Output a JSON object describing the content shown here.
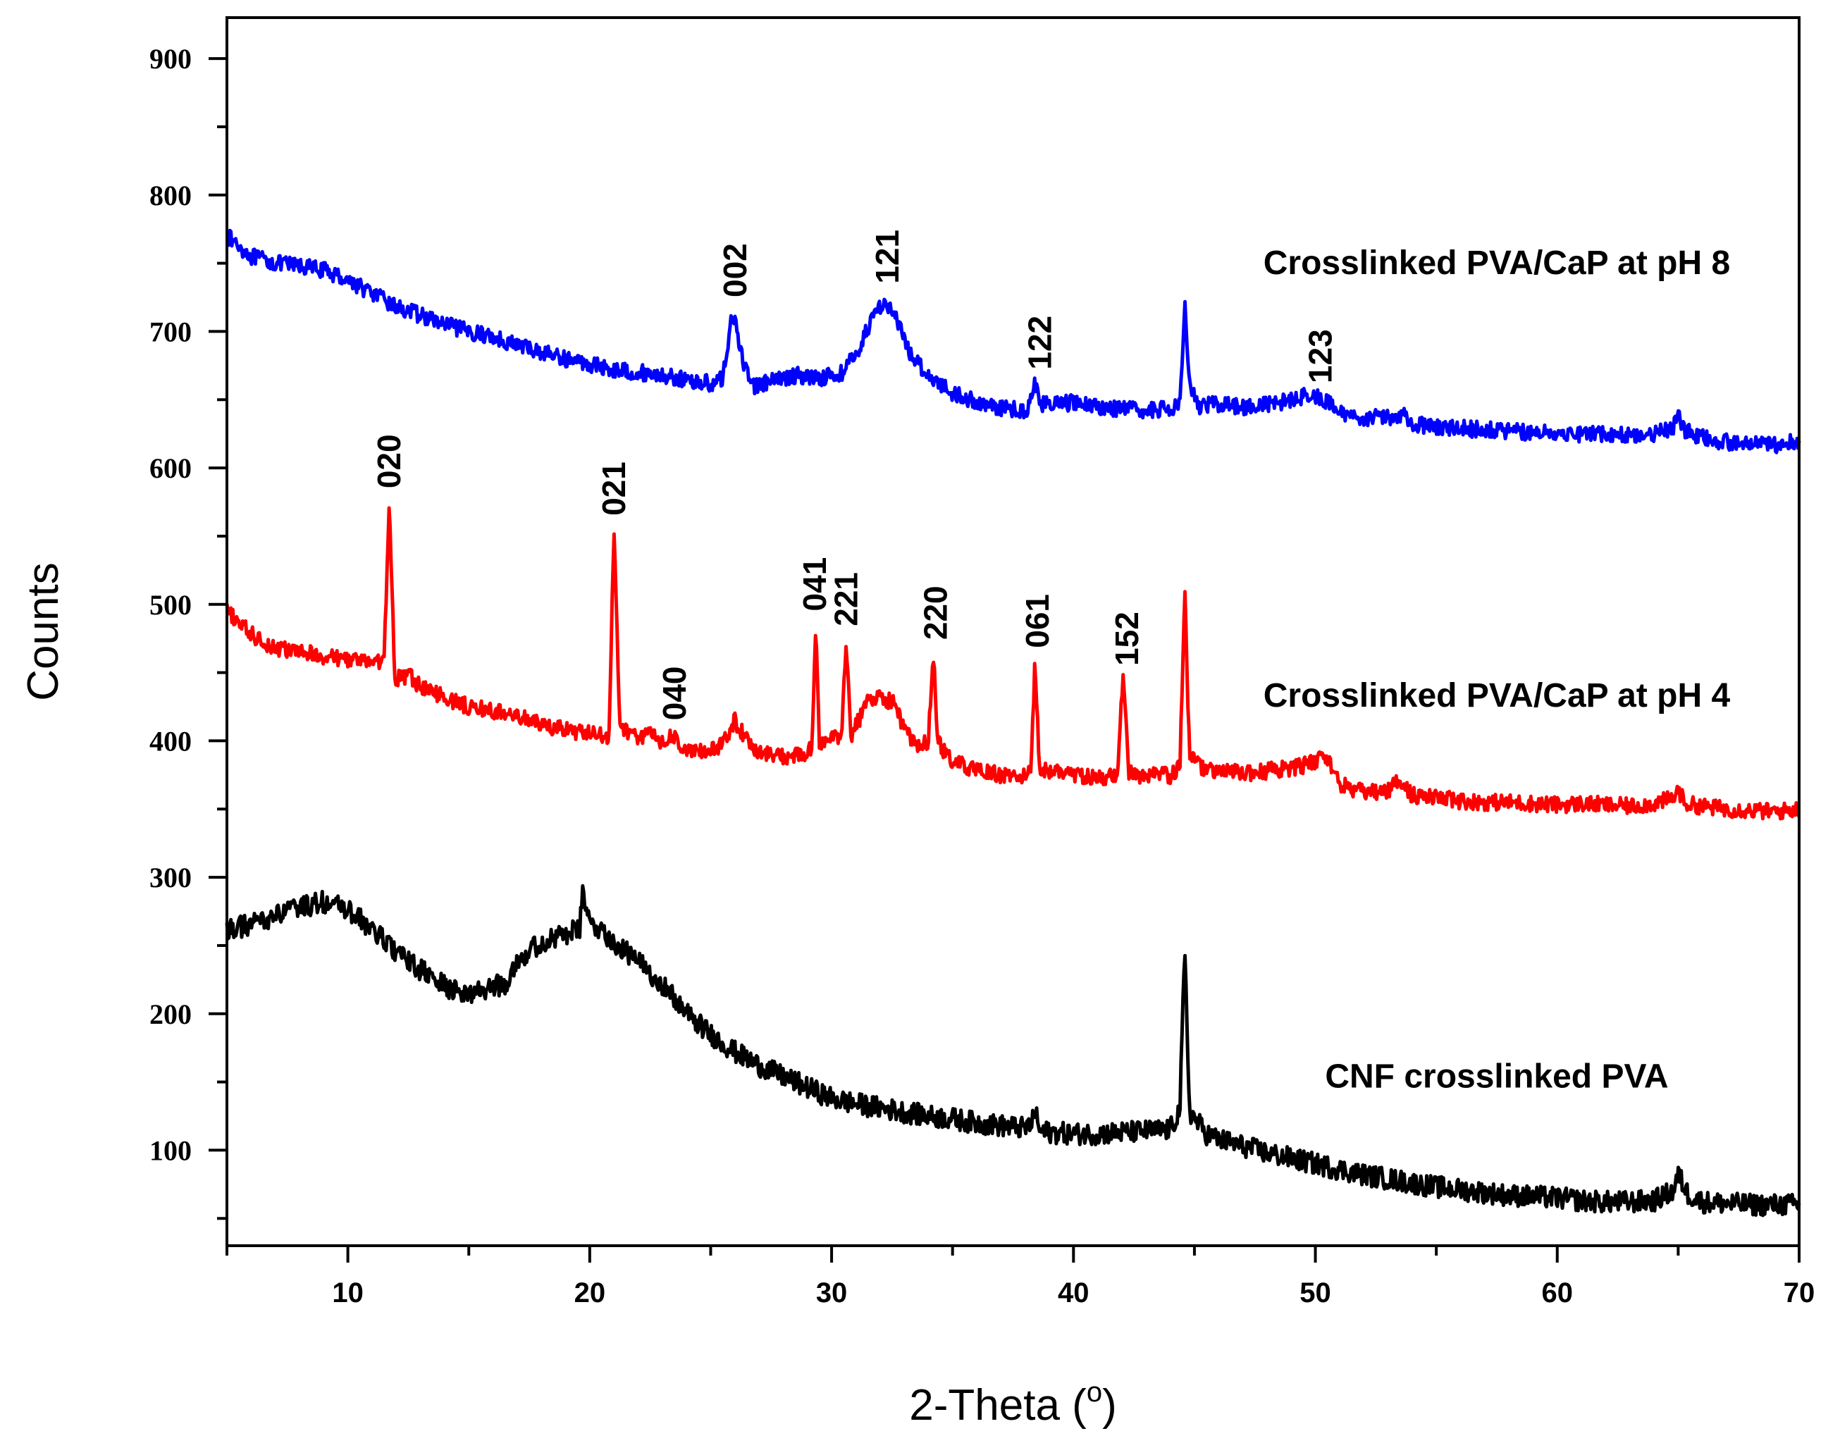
{
  "chart_data": {
    "type": "line",
    "title": "",
    "xlabel": "2-Theta (",
    "xlabel_sup": "o",
    "xlabel_close": ")",
    "ylabel": "Counts",
    "xlim": [
      5,
      70
    ],
    "ylim": [
      30,
      930
    ],
    "xticks": [
      10,
      20,
      30,
      40,
      50,
      60,
      70
    ],
    "yticks": [
      100,
      200,
      300,
      400,
      500,
      600,
      700,
      800,
      900
    ],
    "series": [
      {
        "name": "Crosslinked PVA/CaP at pH 8",
        "color": "#0000ff",
        "points": [
          [
            5,
            770
          ],
          [
            6,
            755
          ],
          [
            7,
            750
          ],
          [
            8,
            748
          ],
          [
            9,
            745
          ],
          [
            10,
            738
          ],
          [
            11,
            728
          ],
          [
            12,
            718
          ],
          [
            13,
            712
          ],
          [
            14,
            705
          ],
          [
            15,
            700
          ],
          [
            16,
            696
          ],
          [
            17,
            690
          ],
          [
            18,
            685
          ],
          [
            19,
            680
          ],
          [
            20,
            676
          ],
          [
            21,
            672
          ],
          [
            22,
            670
          ],
          [
            23,
            668
          ],
          [
            24,
            664
          ],
          [
            25,
            662
          ],
          [
            25.5,
            665
          ],
          [
            25.9,
            715
          ],
          [
            26.3,
            680
          ],
          [
            26.8,
            660
          ],
          [
            27.5,
            663
          ],
          [
            28.5,
            668
          ],
          [
            29.5,
            666
          ],
          [
            30.5,
            670
          ],
          [
            31.2,
            690
          ],
          [
            31.8,
            715
          ],
          [
            32.2,
            722
          ],
          [
            32.6,
            712
          ],
          [
            33.2,
            685
          ],
          [
            34,
            668
          ],
          [
            35,
            655
          ],
          [
            36,
            648
          ],
          [
            37,
            644
          ],
          [
            38,
            642
          ],
          [
            38.2,
            646
          ],
          [
            38.4,
            664
          ],
          [
            38.6,
            648
          ],
          [
            39,
            646
          ],
          [
            40,
            648
          ],
          [
            41,
            645
          ],
          [
            42,
            643
          ],
          [
            43,
            642
          ],
          [
            44,
            643
          ],
          [
            44.4,
            650
          ],
          [
            44.6,
            720
          ],
          [
            44.8,
            660
          ],
          [
            45.2,
            645
          ],
          [
            46,
            647
          ],
          [
            47,
            645
          ],
          [
            48,
            646
          ],
          [
            49,
            650
          ],
          [
            49.8,
            654
          ],
          [
            50.5,
            648
          ],
          [
            51,
            640
          ],
          [
            52,
            637
          ],
          [
            53,
            637
          ],
          [
            53.6,
            640
          ],
          [
            54,
            632
          ],
          [
            55,
            630
          ],
          [
            56,
            629
          ],
          [
            57,
            628
          ],
          [
            58,
            627
          ],
          [
            59,
            626
          ],
          [
            60,
            626
          ],
          [
            61,
            625
          ],
          [
            62,
            625
          ],
          [
            63,
            624
          ],
          [
            64,
            625
          ],
          [
            64.8,
            629
          ],
          [
            65,
            638
          ],
          [
            65.3,
            627
          ],
          [
            66,
            622
          ],
          [
            67,
            619
          ],
          [
            68,
            617
          ],
          [
            69,
            617
          ],
          [
            70,
            620
          ]
        ]
      },
      {
        "name": "Crosslinked PVA/CaP at pH 4",
        "color": "#ff0000",
        "points": [
          [
            5,
            495
          ],
          [
            6,
            478
          ],
          [
            7,
            468
          ],
          [
            8,
            465
          ],
          [
            9,
            462
          ],
          [
            10,
            460
          ],
          [
            11,
            458
          ],
          [
            11.5,
            458
          ],
          [
            11.7,
            575
          ],
          [
            11.95,
            445
          ],
          [
            12.5,
            448
          ],
          [
            13,
            440
          ],
          [
            14,
            432
          ],
          [
            15,
            425
          ],
          [
            16,
            422
          ],
          [
            17,
            418
          ],
          [
            18,
            412
          ],
          [
            19,
            408
          ],
          [
            20,
            405
          ],
          [
            20.8,
            403
          ],
          [
            21,
            555
          ],
          [
            21.25,
            410
          ],
          [
            22,
            402
          ],
          [
            22.5,
            407
          ],
          [
            23,
            398
          ],
          [
            23.4,
            404
          ],
          [
            24,
            392
          ],
          [
            25,
            392
          ],
          [
            25.5,
            398
          ],
          [
            26,
            415
          ],
          [
            26.5,
            400
          ],
          [
            27,
            392
          ],
          [
            28,
            388
          ],
          [
            29,
            390
          ],
          [
            29.2,
            396
          ],
          [
            29.35,
            485
          ],
          [
            29.5,
            398
          ],
          [
            30,
            402
          ],
          [
            30.4,
            402
          ],
          [
            30.6,
            476
          ],
          [
            30.8,
            404
          ],
          [
            31.2,
            418
          ],
          [
            31.6,
            432
          ],
          [
            32,
            432
          ],
          [
            32.6,
            428
          ],
          [
            33,
            408
          ],
          [
            33.5,
            395
          ],
          [
            34,
            400
          ],
          [
            34.2,
            465
          ],
          [
            34.4,
            398
          ],
          [
            35,
            385
          ],
          [
            36,
            378
          ],
          [
            37,
            375
          ],
          [
            38,
            374
          ],
          [
            38.25,
            376
          ],
          [
            38.4,
            458
          ],
          [
            38.6,
            380
          ],
          [
            39,
            378
          ],
          [
            40,
            376
          ],
          [
            41,
            372
          ],
          [
            41.8,
            375
          ],
          [
            42.05,
            445
          ],
          [
            42.3,
            376
          ],
          [
            43,
            372
          ],
          [
            43.5,
            376
          ],
          [
            44,
            374
          ],
          [
            44.4,
            382
          ],
          [
            44.6,
            510
          ],
          [
            44.8,
            388
          ],
          [
            45.5,
            378
          ],
          [
            46,
            378
          ],
          [
            47,
            376
          ],
          [
            48,
            378
          ],
          [
            49,
            380
          ],
          [
            50,
            384
          ],
          [
            50.3,
            392
          ],
          [
            50.8,
            378
          ],
          [
            51,
            368
          ],
          [
            52,
            362
          ],
          [
            53,
            363
          ],
          [
            53.5,
            372
          ],
          [
            54,
            360
          ],
          [
            55,
            358
          ],
          [
            56,
            356
          ],
          [
            57,
            355
          ],
          [
            58,
            355
          ],
          [
            59,
            354
          ],
          [
            60,
            353
          ],
          [
            61,
            354
          ],
          [
            62,
            353
          ],
          [
            63,
            352
          ],
          [
            64,
            354
          ],
          [
            64.8,
            358
          ],
          [
            65,
            364
          ],
          [
            65.3,
            354
          ],
          [
            66,
            352
          ],
          [
            67,
            350
          ],
          [
            68,
            349
          ],
          [
            69,
            348
          ],
          [
            70,
            350
          ]
        ]
      },
      {
        "name": "CNF crosslinked PVA",
        "color": "#000000",
        "points": [
          [
            5,
            262
          ],
          [
            6,
            265
          ],
          [
            7,
            272
          ],
          [
            8,
            278
          ],
          [
            9,
            282
          ],
          [
            10,
            276
          ],
          [
            11,
            262
          ],
          [
            12,
            245
          ],
          [
            13,
            232
          ],
          [
            14,
            220
          ],
          [
            15,
            214
          ],
          [
            16,
            220
          ],
          [
            16.5,
            222
          ],
          [
            17,
            240
          ],
          [
            18,
            252
          ],
          [
            19,
            258
          ],
          [
            19.6,
            262
          ],
          [
            19.7,
            295
          ],
          [
            19.9,
            268
          ],
          [
            20.5,
            262
          ],
          [
            21,
            252
          ],
          [
            22,
            238
          ],
          [
            23,
            222
          ],
          [
            24,
            200
          ],
          [
            25,
            185
          ],
          [
            26,
            172
          ],
          [
            27,
            162
          ],
          [
            28,
            154
          ],
          [
            29,
            146
          ],
          [
            30,
            138
          ],
          [
            31,
            134
          ],
          [
            32,
            131
          ],
          [
            33,
            128
          ],
          [
            34,
            125
          ],
          [
            35,
            123
          ],
          [
            36,
            120
          ],
          [
            37,
            118
          ],
          [
            38,
            116
          ],
          [
            38.3,
            120
          ],
          [
            38.4,
            130
          ],
          [
            38.6,
            114
          ],
          [
            39,
            113
          ],
          [
            40,
            112
          ],
          [
            41,
            112
          ],
          [
            42,
            113
          ],
          [
            43,
            114
          ],
          [
            44,
            115
          ],
          [
            44.4,
            130
          ],
          [
            44.6,
            246
          ],
          [
            44.8,
            128
          ],
          [
            45.5,
            112
          ],
          [
            46,
            108
          ],
          [
            47,
            103
          ],
          [
            48,
            98
          ],
          [
            49,
            94
          ],
          [
            50,
            90
          ],
          [
            51,
            86
          ],
          [
            52,
            82
          ],
          [
            53,
            79
          ],
          [
            54,
            76
          ],
          [
            55,
            73
          ],
          [
            56,
            71
          ],
          [
            57,
            69
          ],
          [
            58,
            67
          ],
          [
            59,
            66
          ],
          [
            60,
            65
          ],
          [
            61,
            63
          ],
          [
            62,
            62
          ],
          [
            63,
            62
          ],
          [
            64,
            63
          ],
          [
            64.8,
            70
          ],
          [
            65,
            82
          ],
          [
            65.4,
            68
          ],
          [
            66,
            62
          ],
          [
            67,
            61
          ],
          [
            68,
            60
          ],
          [
            69,
            60
          ],
          [
            70,
            60
          ]
        ]
      }
    ],
    "series_labels": [
      {
        "text": "Crosslinked PVA/CaP at pH 8",
        "x": 57.5,
        "y": 742
      },
      {
        "text": "Crosslinked PVA/CaP at pH 4",
        "x": 57.5,
        "y": 425
      },
      {
        "text": "CNF crosslinked PVA",
        "x": 57.5,
        "y": 146
      }
    ],
    "peak_labels": [
      {
        "text": "002",
        "x": 26.0,
        "y": 725
      },
      {
        "text": "121",
        "x": 32.3,
        "y": 735
      },
      {
        "text": "122",
        "x": 38.6,
        "y": 672
      },
      {
        "text": "123",
        "x": 50.2,
        "y": 662
      },
      {
        "text": "020",
        "x": 11.7,
        "y": 585
      },
      {
        "text": "021",
        "x": 21.0,
        "y": 565
      },
      {
        "text": "040",
        "x": 23.5,
        "y": 415
      },
      {
        "text": "041",
        "x": 29.3,
        "y": 495
      },
      {
        "text": "221",
        "x": 30.6,
        "y": 484
      },
      {
        "text": "220",
        "x": 34.3,
        "y": 474
      },
      {
        "text": "061",
        "x": 38.5,
        "y": 468
      },
      {
        "text": "152",
        "x": 42.2,
        "y": 455
      }
    ]
  }
}
